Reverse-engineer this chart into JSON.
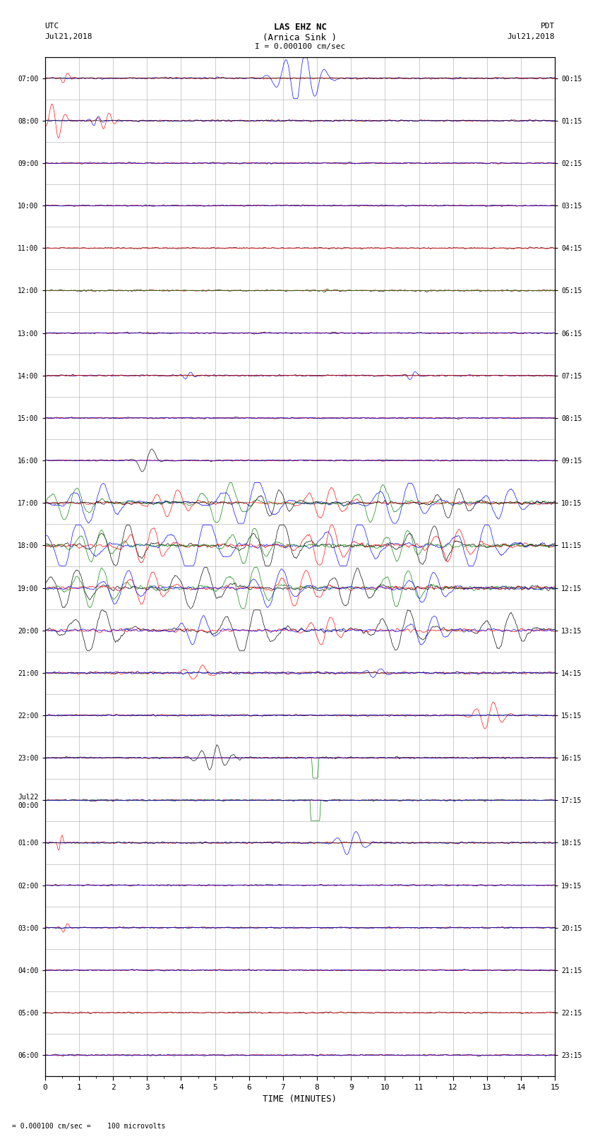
{
  "title_line1": "LAS EHZ NC",
  "title_line2": "(Arnica Sink )",
  "scale_text": "I = 0.000100 cm/sec",
  "bottom_text": "= 0.000100 cm/sec =    100 microvolts",
  "utc_label": "UTC",
  "utc_date": "Jul21,2018",
  "pdt_label": "PDT",
  "pdt_date": "Jul21,2018",
  "xlabel": "TIME (MINUTES)",
  "xlim": [
    0,
    15
  ],
  "xticks": [
    0,
    1,
    2,
    3,
    4,
    5,
    6,
    7,
    8,
    9,
    10,
    11,
    12,
    13,
    14,
    15
  ],
  "background_color": "#ffffff",
  "grid_color": "#aaaaaa",
  "num_rows": 24,
  "utc_times": [
    "07:00",
    "08:00",
    "09:00",
    "10:00",
    "11:00",
    "12:00",
    "13:00",
    "14:00",
    "15:00",
    "16:00",
    "17:00",
    "18:00",
    "19:00",
    "20:00",
    "21:00",
    "22:00",
    "23:00",
    "Jul22\n00:00",
    "01:00",
    "02:00",
    "03:00",
    "04:00",
    "05:00",
    "06:00"
  ],
  "pdt_times": [
    "00:15",
    "01:15",
    "02:15",
    "03:15",
    "04:15",
    "05:15",
    "06:15",
    "07:15",
    "08:15",
    "09:15",
    "10:15",
    "11:15",
    "12:15",
    "13:15",
    "14:15",
    "15:15",
    "16:15",
    "17:15",
    "18:15",
    "19:15",
    "20:15",
    "21:15",
    "22:15",
    "23:15"
  ],
  "fig_width": 8.5,
  "fig_height": 16.13
}
